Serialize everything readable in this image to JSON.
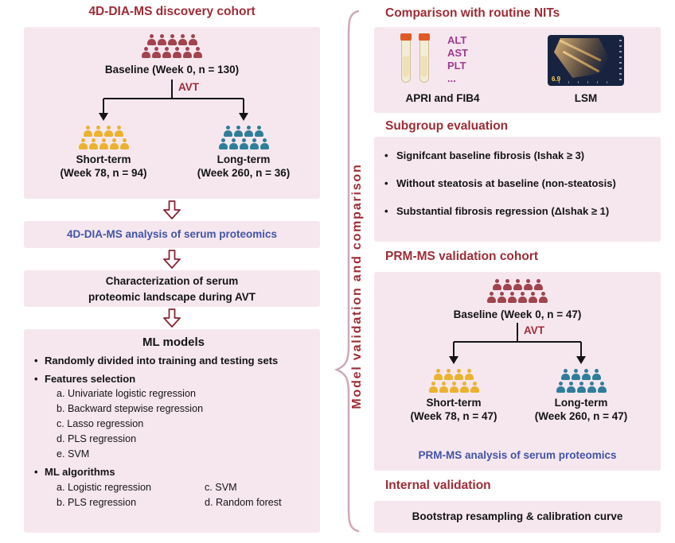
{
  "colors": {
    "pink_panel": "#f6e7ef",
    "dark_red": "#9e2c36",
    "blue": "#4254a5",
    "purple": "#a03a93",
    "cohort_red": "#a2434d",
    "short_term_yellow": "#ecb22e",
    "long_term_teal": "#2f7e99"
  },
  "discovery": {
    "title": "4D-DIA-MS discovery cohort",
    "baseline": "Baseline (Week 0, n = 130)",
    "avt": "AVT",
    "short_term": {
      "label": "Short-term",
      "sub": "(Week 78, n = 94)"
    },
    "long_term": {
      "label": "Long-term",
      "sub": "(Week 260, n = 36)"
    },
    "analysis": "4D-DIA-MS analysis of serum proteomics",
    "characterization": {
      "line1": "Characterization of serum",
      "line2": "proteomic landscape during AVT"
    },
    "ml": {
      "title": "ML models",
      "bullet_split": "Randomly divided into training and testing sets",
      "bullet_features": "Features selection",
      "features": [
        "a. Univariate logistic regression",
        "b. Backward stepwise regression",
        "c. Lasso regression",
        "d. PLS regression",
        "e. SVM"
      ],
      "bullet_algorithms": "ML algorithms",
      "algorithms_left": [
        "a. Logistic regression",
        "b. PLS regression"
      ],
      "algorithms_right": [
        "c. SVM",
        "d. Random forest"
      ]
    }
  },
  "middle": {
    "label": "Model validation and comparison"
  },
  "comparison": {
    "title": "Comparison with routine NITs",
    "markers": [
      "ALT",
      "AST",
      "PLT",
      "..."
    ],
    "apri_label": "APRI and FIB4",
    "lsm_label": "LSM",
    "lsm_reading": "6.9"
  },
  "subgroup": {
    "title": "Subgroup evaluation",
    "items": [
      "Signifcant baseline fibrosis (Ishak ≥ 3)",
      "Without steatosis at baseline (non-steatosis)",
      "Substantial fibrosis regression (ΔIshak ≥ 1)"
    ]
  },
  "validation": {
    "title": "PRM-MS validation cohort",
    "baseline": "Baseline (Week 0, n = 47)",
    "avt": "AVT",
    "short_term": {
      "label": "Short-term",
      "sub": "(Week 78, n = 47)"
    },
    "long_term": {
      "label": "Long-term",
      "sub": "(Week 260, n = 47)"
    },
    "analysis": "PRM-MS analysis of serum proteomics"
  },
  "internal": {
    "title": "Internal validation",
    "text": "Bootstrap resampling & calibration curve"
  }
}
